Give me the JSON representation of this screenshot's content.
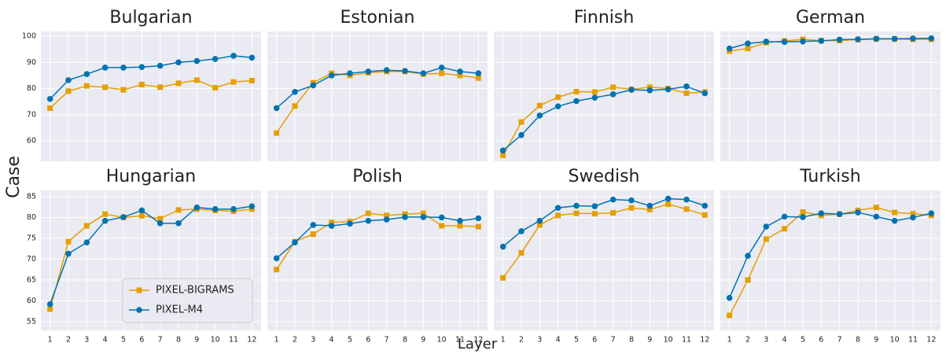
{
  "xlabel": "Layer",
  "ylabel": "Case",
  "chart_data": [
    {
      "type": "line",
      "title": "Bulgarian",
      "x": [
        1,
        2,
        3,
        4,
        5,
        6,
        7,
        8,
        9,
        10,
        11,
        12
      ],
      "xlim": [
        0.5,
        12.5
      ],
      "xticks": [
        1,
        2,
        3,
        4,
        5,
        6,
        7,
        8,
        9,
        10,
        11,
        12
      ],
      "ylim": [
        52.2,
        101.8
      ],
      "yticks": [
        60,
        70,
        80,
        90,
        100
      ],
      "grid": true,
      "series": [
        {
          "name": "PIXEL-BIGRAMS",
          "color": "#e69f00",
          "marker": "square",
          "values": [
            72.5,
            79,
            81,
            80.5,
            79.5,
            81.5,
            80.5,
            82,
            83.2,
            80.3,
            82.5,
            83
          ]
        },
        {
          "name": "PIXEL-M4",
          "color": "#0173b2",
          "marker": "circle",
          "values": [
            76,
            83.2,
            85.5,
            88,
            88,
            88.2,
            88.7,
            90,
            90.5,
            91.3,
            92.5,
            91.8
          ]
        }
      ]
    },
    {
      "type": "line",
      "title": "Estonian",
      "x": [
        1,
        2,
        3,
        4,
        5,
        6,
        7,
        8,
        9,
        10,
        11,
        12
      ],
      "xlim": [
        0.5,
        12.5
      ],
      "xticks": [
        1,
        2,
        3,
        4,
        5,
        6,
        7,
        8,
        9,
        10,
        11,
        12
      ],
      "ylim": [
        52.2,
        101.8
      ],
      "yticks": [
        60,
        70,
        80,
        90,
        100
      ],
      "grid": true,
      "series": [
        {
          "name": "PIXEL-BIGRAMS",
          "color": "#e69f00",
          "marker": "square",
          "values": [
            63,
            73.3,
            82.2,
            85.8,
            85,
            86,
            86.5,
            86.5,
            85.5,
            85.8,
            85,
            84
          ]
        },
        {
          "name": "PIXEL-M4",
          "color": "#0173b2",
          "marker": "circle",
          "values": [
            72.5,
            78.7,
            81.2,
            85,
            85.8,
            86.5,
            87,
            86.7,
            85.8,
            88,
            86.5,
            85.8
          ]
        }
      ]
    },
    {
      "type": "line",
      "title": "Finnish",
      "x": [
        1,
        2,
        3,
        4,
        5,
        6,
        7,
        8,
        9,
        10,
        11,
        12
      ],
      "xlim": [
        0.5,
        12.5
      ],
      "xticks": [
        1,
        2,
        3,
        4,
        5,
        6,
        7,
        8,
        9,
        10,
        11,
        12
      ],
      "ylim": [
        52.2,
        101.8
      ],
      "yticks": [
        60,
        70,
        80,
        90,
        100
      ],
      "grid": true,
      "series": [
        {
          "name": "PIXEL-BIGRAMS",
          "color": "#e69f00",
          "marker": "square",
          "values": [
            54.5,
            67.2,
            73.5,
            76.7,
            78.8,
            78.7,
            80.5,
            79.7,
            80.5,
            80,
            78.2,
            78.7
          ]
        },
        {
          "name": "PIXEL-M4",
          "color": "#0173b2",
          "marker": "circle",
          "values": [
            56.3,
            62.2,
            69.7,
            73.2,
            75.2,
            76.5,
            77.8,
            79.5,
            79.3,
            79.7,
            80.8,
            78.2
          ]
        }
      ]
    },
    {
      "type": "line",
      "title": "German",
      "x": [
        1,
        2,
        3,
        4,
        5,
        6,
        7,
        8,
        9,
        10,
        11,
        12
      ],
      "xlim": [
        0.5,
        12.5
      ],
      "xticks": [
        1,
        2,
        3,
        4,
        5,
        6,
        7,
        8,
        9,
        10,
        11,
        12
      ],
      "ylim": [
        52.2,
        101.8
      ],
      "yticks": [
        60,
        70,
        80,
        90,
        100
      ],
      "grid": true,
      "series": [
        {
          "name": "PIXEL-BIGRAMS",
          "color": "#e69f00",
          "marker": "square",
          "values": [
            94.3,
            95.3,
            97.5,
            98.2,
            98.8,
            98.3,
            98.3,
            98.7,
            98.9,
            98.9,
            98.8,
            98.8
          ]
        },
        {
          "name": "PIXEL-M4",
          "color": "#0173b2",
          "marker": "circle",
          "values": [
            95.3,
            97.2,
            97.9,
            97.8,
            98,
            98.2,
            98.7,
            98.8,
            99,
            99,
            99.1,
            99.2
          ]
        }
      ]
    },
    {
      "type": "line",
      "title": "Hungarian",
      "x": [
        1,
        2,
        3,
        4,
        5,
        6,
        7,
        8,
        9,
        10,
        11,
        12
      ],
      "xlim": [
        0.5,
        12.5
      ],
      "xticks": [
        1,
        2,
        3,
        4,
        5,
        6,
        7,
        8,
        9,
        10,
        11,
        12
      ],
      "ylim": [
        52.9,
        86.5
      ],
      "yticks": [
        55,
        60,
        65,
        70,
        75,
        80,
        85
      ],
      "grid": true,
      "legend": "lower right",
      "series": [
        {
          "name": "PIXEL-BIGRAMS",
          "color": "#e69f00",
          "marker": "square",
          "values": [
            58,
            74.2,
            78,
            80.8,
            80,
            80.4,
            79.7,
            81.8,
            82,
            81.7,
            81.5,
            82
          ]
        },
        {
          "name": "PIXEL-M4",
          "color": "#0173b2",
          "marker": "circle",
          "values": [
            59.2,
            71.3,
            74,
            79.2,
            80.1,
            81.7,
            78.6,
            78.6,
            82.4,
            82,
            82,
            82.7
          ]
        }
      ]
    },
    {
      "type": "line",
      "title": "Polish",
      "x": [
        1,
        2,
        3,
        4,
        5,
        6,
        7,
        8,
        9,
        10,
        11,
        12
      ],
      "xlim": [
        0.5,
        12.5
      ],
      "xticks": [
        1,
        2,
        3,
        4,
        5,
        6,
        7,
        8,
        9,
        10,
        11,
        12
      ],
      "ylim": [
        52.9,
        86.5
      ],
      "yticks": [
        55,
        60,
        65,
        70,
        75,
        80,
        85
      ],
      "grid": true,
      "series": [
        {
          "name": "PIXEL-BIGRAMS",
          "color": "#e69f00",
          "marker": "square",
          "values": [
            67.5,
            74.2,
            76,
            78.8,
            79,
            81,
            80.5,
            80.8,
            81,
            78,
            78,
            77.8
          ]
        },
        {
          "name": "PIXEL-M4",
          "color": "#0173b2",
          "marker": "circle",
          "values": [
            70.2,
            74,
            78.2,
            78,
            78.5,
            79.2,
            79.5,
            80.1,
            80.1,
            80,
            79.2,
            79.8
          ]
        }
      ]
    },
    {
      "type": "line",
      "title": "Swedish",
      "x": [
        1,
        2,
        3,
        4,
        5,
        6,
        7,
        8,
        9,
        10,
        11,
        12
      ],
      "xlim": [
        0.5,
        12.5
      ],
      "xticks": [
        1,
        2,
        3,
        4,
        5,
        6,
        7,
        8,
        9,
        10,
        11,
        12
      ],
      "ylim": [
        52.9,
        86.5
      ],
      "yticks": [
        55,
        60,
        65,
        70,
        75,
        80,
        85
      ],
      "grid": true,
      "series": [
        {
          "name": "PIXEL-BIGRAMS",
          "color": "#e69f00",
          "marker": "square",
          "values": [
            65.5,
            71.5,
            78.2,
            80.5,
            81,
            80.9,
            81.1,
            82.3,
            81.9,
            83.2,
            82,
            80.6
          ]
        },
        {
          "name": "PIXEL-M4",
          "color": "#0173b2",
          "marker": "circle",
          "values": [
            73,
            76.7,
            79.2,
            82.3,
            82.8,
            82.7,
            84.3,
            84.1,
            82.8,
            84.5,
            84.3,
            82.8
          ]
        }
      ]
    },
    {
      "type": "line",
      "title": "Turkish",
      "x": [
        1,
        2,
        3,
        4,
        5,
        6,
        7,
        8,
        9,
        10,
        11,
        12
      ],
      "xlim": [
        0.5,
        12.5
      ],
      "xticks": [
        1,
        2,
        3,
        4,
        5,
        6,
        7,
        8,
        9,
        10,
        11,
        12
      ],
      "ylim": [
        52.9,
        86.5
      ],
      "yticks": [
        55,
        60,
        65,
        70,
        75,
        80,
        85
      ],
      "grid": true,
      "series": [
        {
          "name": "PIXEL-BIGRAMS",
          "color": "#e69f00",
          "marker": "square",
          "values": [
            56.5,
            65,
            74.8,
            77.3,
            81.3,
            80.5,
            80.8,
            81.7,
            82.4,
            81.2,
            80.9,
            80.5
          ]
        },
        {
          "name": "PIXEL-M4",
          "color": "#0173b2",
          "marker": "circle",
          "values": [
            60.7,
            70.8,
            77.8,
            80.2,
            80.1,
            81,
            80.8,
            81.2,
            80.2,
            79.2,
            80,
            81
          ]
        }
      ]
    }
  ]
}
